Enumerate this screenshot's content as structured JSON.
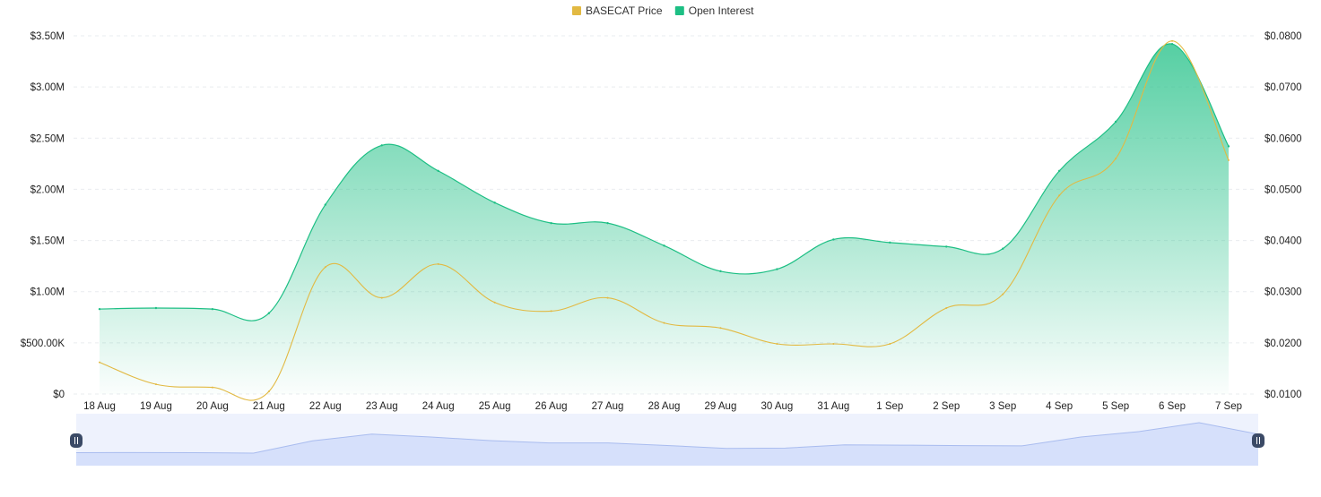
{
  "chart_data": {
    "type": "area",
    "legend": {
      "placement": "top-center",
      "items": [
        {
          "label": "BASECAT Price",
          "color": "#e2b942"
        },
        {
          "label": "Open Interest",
          "color": "#1dbf84"
        }
      ]
    },
    "categories": [
      "18 Aug",
      "19 Aug",
      "20 Aug",
      "21 Aug",
      "22 Aug",
      "23 Aug",
      "24 Aug",
      "25 Aug",
      "26 Aug",
      "27 Aug",
      "28 Aug",
      "29 Aug",
      "30 Aug",
      "31 Aug",
      "1 Sep",
      "2 Sep",
      "3 Sep",
      "4 Sep",
      "5 Sep",
      "6 Sep",
      "7 Sep"
    ],
    "y_left": {
      "range": [
        0,
        3500000
      ],
      "ticks": [
        {
          "value": 0,
          "label": "$0"
        },
        {
          "value": 500000,
          "label": "$500.00K"
        },
        {
          "value": 1000000,
          "label": "$1.00M"
        },
        {
          "value": 1500000,
          "label": "$1.50M"
        },
        {
          "value": 2000000,
          "label": "$2.00M"
        },
        {
          "value": 2500000,
          "label": "$2.50M"
        },
        {
          "value": 3000000,
          "label": "$3.00M"
        },
        {
          "value": 3500000,
          "label": "$3.50M"
        }
      ]
    },
    "y_right": {
      "range": [
        0.01,
        0.08
      ],
      "ticks": [
        {
          "value": 0.01,
          "label": "$0.0100"
        },
        {
          "value": 0.02,
          "label": "$0.0200"
        },
        {
          "value": 0.03,
          "label": "$0.0300"
        },
        {
          "value": 0.04,
          "label": "$0.0400"
        },
        {
          "value": 0.05,
          "label": "$0.0500"
        },
        {
          "value": 0.06,
          "label": "$0.0600"
        },
        {
          "value": 0.07,
          "label": "$0.0700"
        },
        {
          "value": 0.08,
          "label": "$0.0800"
        }
      ]
    },
    "grid": true,
    "series": [
      {
        "name": "Open Interest",
        "axis": "left",
        "type": "area",
        "color": "#1dbf84",
        "values": [
          830000,
          840000,
          830000,
          790000,
          1850000,
          2430000,
          2180000,
          1870000,
          1670000,
          1670000,
          1450000,
          1200000,
          1220000,
          1510000,
          1480000,
          1440000,
          1420000,
          2180000,
          2660000,
          3420000,
          2420000
        ]
      },
      {
        "name": "BASECAT Price",
        "axis": "right",
        "type": "line",
        "color": "#e2b942",
        "values": [
          0.0162,
          0.0119,
          0.0113,
          0.0105,
          0.0348,
          0.0288,
          0.0354,
          0.0279,
          0.0262,
          0.0288,
          0.0239,
          0.0229,
          0.0198,
          0.0198,
          0.0198,
          0.0268,
          0.0295,
          0.0488,
          0.056,
          0.079,
          0.0557
        ]
      }
    ],
    "navigator": {
      "visible": true,
      "range_start": "18 Aug",
      "range_end": "7 Sep"
    }
  }
}
